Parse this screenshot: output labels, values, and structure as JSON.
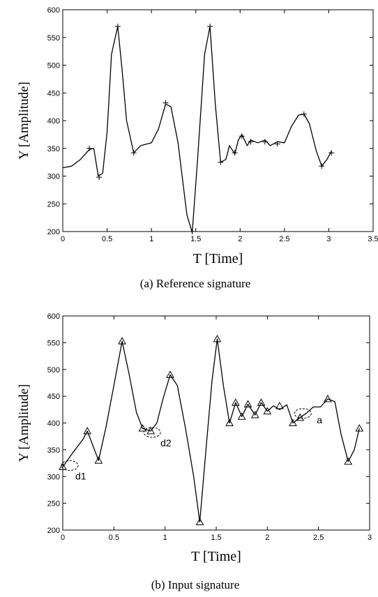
{
  "chart_data": [
    {
      "type": "line",
      "xlabel": "T [Time]",
      "ylabel": "Y [Amplitude]",
      "caption": "(a) Reference signature",
      "xlim": [
        0,
        3.5
      ],
      "ylim": [
        200,
        600
      ],
      "xticks": [
        "0",
        "0.5",
        "1",
        "1.5",
        "2",
        "2.5",
        "3",
        "3.5"
      ],
      "yticks": [
        "200",
        "250",
        "300",
        "350",
        "400",
        "450",
        "500",
        "550",
        "600"
      ],
      "marker": "plus",
      "x": [
        0,
        0.1,
        0.2,
        0.3,
        0.35,
        0.4,
        0.45,
        0.5,
        0.55,
        0.62,
        0.67,
        0.72,
        0.8,
        0.88,
        1.0,
        1.08,
        1.16,
        1.22,
        1.3,
        1.4,
        1.46,
        1.52,
        1.6,
        1.66,
        1.72,
        1.78,
        1.84,
        1.88,
        1.94,
        1.98,
        2.02,
        2.08,
        2.12,
        2.2,
        2.28,
        2.34,
        2.42,
        2.5,
        2.58,
        2.66,
        2.72,
        2.78,
        2.86,
        2.92,
        2.98,
        3.03
      ],
      "y": [
        315,
        318,
        330,
        348,
        350,
        300,
        305,
        380,
        520,
        570,
        490,
        400,
        342,
        355,
        360,
        385,
        430,
        425,
        360,
        230,
        198,
        330,
        520,
        570,
        430,
        325,
        330,
        355,
        340,
        365,
        375,
        355,
        365,
        360,
        365,
        355,
        362,
        360,
        390,
        410,
        412,
        395,
        345,
        318,
        330,
        345
      ],
      "markers": [
        [
          0.3,
          350
        ],
        [
          0.41,
          298
        ],
        [
          0.62,
          570
        ],
        [
          0.8,
          342
        ],
        [
          1.16,
          432
        ],
        [
          1.46,
          200
        ],
        [
          1.66,
          570
        ],
        [
          1.78,
          325
        ],
        [
          1.94,
          342
        ],
        [
          2.02,
          372
        ],
        [
          2.12,
          362
        ],
        [
          2.28,
          362
        ],
        [
          2.42,
          358
        ],
        [
          2.72,
          412
        ],
        [
          2.92,
          318
        ],
        [
          3.03,
          342
        ]
      ]
    },
    {
      "type": "line",
      "xlabel": "T [Time]",
      "ylabel": "Y [Amplitude]",
      "caption": "(b) Input signature",
      "xlim": [
        0,
        3
      ],
      "ylim": [
        200,
        600
      ],
      "xticks": [
        "0",
        "0.5",
        "1",
        "1.5",
        "2",
        "2.5",
        "3"
      ],
      "yticks": [
        "200",
        "250",
        "300",
        "350",
        "400",
        "450",
        "500",
        "550",
        "600"
      ],
      "marker": "triangle",
      "x": [
        0,
        0.1,
        0.2,
        0.24,
        0.3,
        0.35,
        0.42,
        0.5,
        0.58,
        0.65,
        0.72,
        0.78,
        0.86,
        0.92,
        0.98,
        1.05,
        1.12,
        1.2,
        1.28,
        1.34,
        1.4,
        1.46,
        1.51,
        1.57,
        1.63,
        1.69,
        1.75,
        1.81,
        1.88,
        1.94,
        2.0,
        2.06,
        2.12,
        2.19,
        2.25,
        2.32,
        2.38,
        2.45,
        2.52,
        2.59,
        2.66,
        2.72,
        2.79,
        2.85,
        2.9
      ],
      "y": [
        318,
        345,
        370,
        385,
        355,
        330,
        390,
        470,
        553,
        490,
        420,
        390,
        385,
        400,
        445,
        490,
        470,
        390,
        300,
        215,
        350,
        480,
        557,
        470,
        400,
        438,
        412,
        435,
        415,
        438,
        422,
        432,
        425,
        434,
        400,
        410,
        418,
        430,
        430,
        445,
        440,
        380,
        328,
        350,
        390
      ],
      "markers": [
        [
          0,
          318
        ],
        [
          0.24,
          385
        ],
        [
          0.35,
          330
        ],
        [
          0.58,
          553
        ],
        [
          0.78,
          390
        ],
        [
          0.86,
          385
        ],
        [
          1.05,
          490
        ],
        [
          1.34,
          215
        ],
        [
          1.51,
          557
        ],
        [
          1.63,
          400
        ],
        [
          1.69,
          438
        ],
        [
          1.75,
          412
        ],
        [
          1.81,
          435
        ],
        [
          1.88,
          415
        ],
        [
          1.94,
          438
        ],
        [
          2.0,
          422
        ],
        [
          2.12,
          432
        ],
        [
          2.25,
          400
        ],
        [
          2.32,
          410
        ],
        [
          2.59,
          445
        ],
        [
          2.79,
          328
        ],
        [
          2.9,
          390
        ]
      ],
      "annotations": [
        {
          "text": "d1",
          "x": 0,
          "y": 318
        },
        {
          "text": "d2",
          "x": 0.86,
          "y": 385
        },
        {
          "text": "a",
          "x": 2.32,
          "y": 410
        }
      ]
    }
  ]
}
